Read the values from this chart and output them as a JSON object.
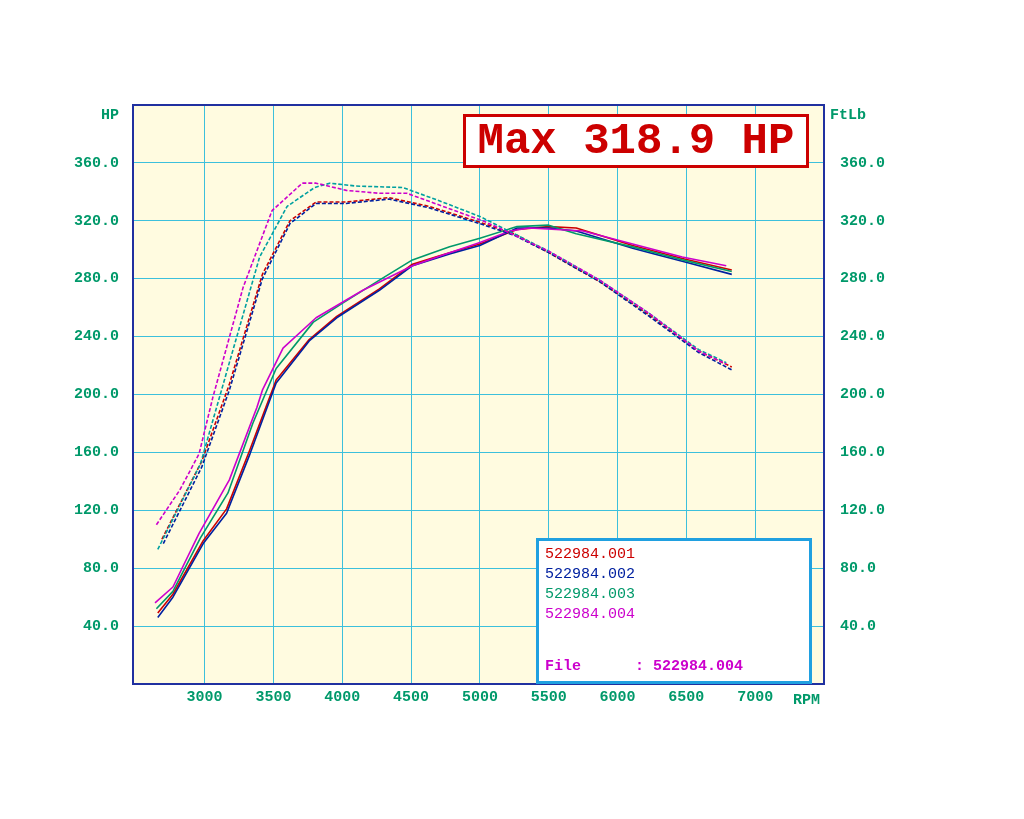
{
  "chart_data": {
    "type": "line",
    "xlabel": "RPM",
    "ylabel": "HP",
    "y2label": "FtLb",
    "annotations": [
      "Max 318.9 HP",
      "File      : 522984.004"
    ],
    "xlim": [
      2480,
      7500
    ],
    "xticks": [
      3000,
      3500,
      4000,
      4500,
      5000,
      5500,
      6000,
      6500,
      7000
    ],
    "ylim": [
      0,
      400
    ],
    "yticks": [
      {
        "value": 40,
        "label": "40.0"
      },
      {
        "value": 80,
        "label": "80.0"
      },
      {
        "value": 120,
        "label": "120.0"
      },
      {
        "value": 160,
        "label": "160.0"
      },
      {
        "value": 200,
        "label": "200.0"
      },
      {
        "value": 240,
        "label": "240.0"
      },
      {
        "value": 280,
        "label": "280.0"
      },
      {
        "value": 320,
        "label": "320.0"
      },
      {
        "value": 360,
        "label": "360.0"
      }
    ],
    "y2lim": [
      0,
      400
    ],
    "y2ticks": [
      {
        "value": 40,
        "label": "40.0"
      },
      {
        "value": 80,
        "label": "80.0"
      },
      {
        "value": 120,
        "label": "120.0"
      },
      {
        "value": 160,
        "label": "160.0"
      },
      {
        "value": 200,
        "label": "200.0"
      },
      {
        "value": 240,
        "label": "240.0"
      },
      {
        "value": 280,
        "label": "280.0"
      },
      {
        "value": 320,
        "label": "320.0"
      },
      {
        "value": 360,
        "label": "360.0"
      }
    ],
    "grid": true,
    "legend": "bottom right",
    "marker": "none",
    "series": [
      {
        "name": "522984.001",
        "color": "#cc0000",
        "line_style": "solid",
        "x": [
          2660,
          2770,
          2990,
          3160,
          3330,
          3520,
          3760,
          3960,
          4270,
          4510,
          4780,
          5000,
          5270,
          5500,
          5700,
          6110,
          6470,
          6830
        ],
        "values": [
          49,
          62,
          99,
          121,
          162,
          210,
          238,
          254,
          273,
          290,
          298,
          304,
          314,
          316,
          315,
          303,
          294,
          286
        ]
      },
      {
        "name": "522984.002",
        "color": "#0020a0",
        "line_style": "solid",
        "x": [
          2660,
          2770,
          2990,
          3160,
          3330,
          3520,
          3760,
          3960,
          4270,
          4510,
          4780,
          5000,
          5270,
          5500,
          5700,
          6110,
          6470,
          6830
        ],
        "values": [
          46,
          60,
          97,
          118,
          159,
          208,
          237,
          253,
          272,
          289,
          297,
          303,
          315,
          315,
          313,
          301,
          292,
          283
        ]
      },
      {
        "name": "522984.003",
        "color": "#00996a",
        "line_style": "solid",
        "x": [
          2650,
          2770,
          2970,
          3170,
          3350,
          3520,
          3790,
          4000,
          4270,
          4510,
          4780,
          5000,
          5270,
          5500,
          5700,
          6110,
          6470,
          6830
        ],
        "values": [
          52,
          64,
          101,
          132,
          180,
          218,
          250,
          263,
          279,
          293,
          302,
          308,
          316,
          317,
          311,
          302,
          293,
          285
        ]
      },
      {
        "name": "522984.004",
        "color": "#cc00cc",
        "line_style": "solid",
        "x": [
          2640,
          2770,
          2960,
          3180,
          3380,
          3420,
          3570,
          3810,
          4150,
          4510,
          4780,
          5000,
          5220,
          5360,
          5750,
          6110,
          6470,
          6790
        ],
        "values": [
          56,
          67,
          104,
          141,
          191,
          203,
          232,
          253,
          272,
          289,
          298,
          305,
          313,
          315,
          313,
          304,
          295,
          289
        ]
      },
      {
        "color": "#cc0000",
        "line_style": "dashed",
        "x": [
          2690,
          2980,
          3180,
          3420,
          3620,
          3810,
          4030,
          4340,
          4630,
          5000,
          5250,
          5500,
          5870,
          6230,
          6590,
          6830
        ],
        "values": [
          100,
          154,
          207,
          283,
          320,
          333,
          333,
          336,
          330,
          319,
          311,
          298,
          278,
          255,
          230,
          219
        ]
      },
      {
        "color": "#0020a0",
        "line_style": "dashed",
        "x": [
          2700,
          2980,
          3180,
          3420,
          3620,
          3810,
          4030,
          4340,
          4630,
          5000,
          5250,
          5500,
          5870,
          6230,
          6590,
          6830
        ],
        "values": [
          97,
          150,
          203,
          280,
          318,
          332,
          332,
          335,
          329,
          318,
          310,
          298,
          278,
          254,
          229,
          217
        ]
      },
      {
        "color": "#00a0a0",
        "line_style": "dashed",
        "x": [
          2660,
          2970,
          3180,
          3400,
          3600,
          3800,
          3910,
          4100,
          4440,
          4700,
          5000,
          5250,
          5500,
          5870,
          6230,
          6590,
          6790
        ],
        "values": [
          93,
          152,
          222,
          295,
          330,
          343,
          346,
          344,
          343,
          334,
          323,
          311,
          299,
          279,
          256,
          231,
          222
        ]
      },
      {
        "color": "#cc00cc",
        "line_style": "dashed",
        "x": [
          2650,
          2820,
          2960,
          3060,
          3280,
          3490,
          3710,
          3810,
          4030,
          4270,
          4470,
          4760,
          5020,
          5140,
          5500,
          5870,
          6230,
          6590,
          6790
        ],
        "values": [
          110,
          134,
          159,
          198,
          274,
          327,
          346,
          346,
          341,
          339,
          339,
          329,
          320,
          315,
          299,
          279,
          256,
          230,
          221
        ]
      }
    ]
  }
}
